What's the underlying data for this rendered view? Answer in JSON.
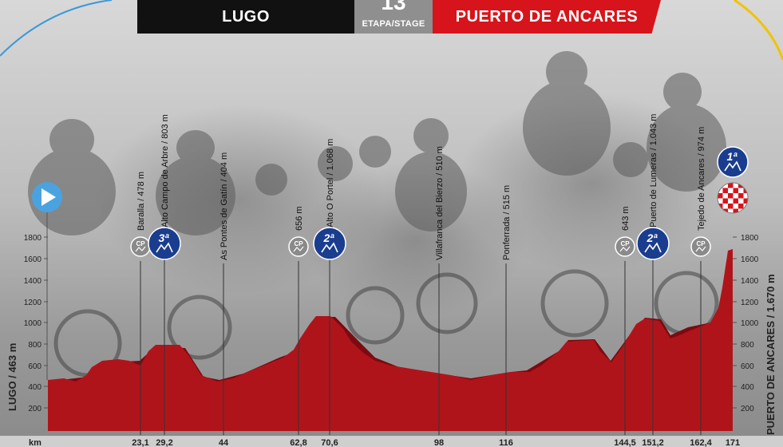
{
  "header": {
    "start_city": "LUGO",
    "stage_number": "13",
    "stage_label": "ETAPA/STAGE",
    "finish_city": "PUERTO DE ANCARES"
  },
  "axis": {
    "unit": "km",
    "left_label": "LUGO / 463 m",
    "right_label": "PUERTO DE ANCARES / 1.670 m",
    "ticks": [
      "200",
      "400",
      "600",
      "800",
      "1000",
      "1200",
      "1400",
      "1600",
      "1800"
    ]
  },
  "colors": {
    "profile_red": "#b0141b",
    "profile_dark": "#7d0a10",
    "climb_blue": "#1a3d8f",
    "sprint_grey": "#8a8a8a",
    "start_blue": "#4aa3e0",
    "header_red": "#d7141b"
  },
  "map_data": {
    "type": "stage elevation profile",
    "points": [
      {
        "label": "Baralla / 478 m",
        "km": "23,1",
        "marker": "CP",
        "marker_kind": "sprint"
      },
      {
        "label": "Alto Campo de Arbre / 803 m",
        "km": "29,2",
        "marker": "3ª",
        "marker_kind": "climb"
      },
      {
        "label": "As Pontes de Gatín / 404 m",
        "km": "44",
        "marker": "",
        "marker_kind": "none"
      },
      {
        "label": "656 m",
        "km": "62,8",
        "marker": "CP",
        "marker_kind": "sprint"
      },
      {
        "label": "Alto O Portel / 1.068 m",
        "km": "70,6",
        "marker": "2ª",
        "marker_kind": "climb"
      },
      {
        "label": "Villafranca del Bierzo / 510 m",
        "km": "98",
        "marker": "",
        "marker_kind": "none"
      },
      {
        "label": "Ponferrada / 515 m",
        "km": "116",
        "marker": "",
        "marker_kind": "none"
      },
      {
        "label": "643 m",
        "km": "144,5",
        "marker": "CP",
        "marker_kind": "sprint"
      },
      {
        "label": "Puerto de Lumeras / 1.043 m",
        "km": "151,2",
        "marker": "2ª",
        "marker_kind": "climb"
      },
      {
        "label": "Tejedo de Ancares / 974 m",
        "km": "162,4",
        "marker": "CP",
        "marker_kind": "sprint"
      },
      {
        "label": "",
        "km": "171",
        "marker": "1ª",
        "marker_kind": "climb"
      }
    ]
  }
}
